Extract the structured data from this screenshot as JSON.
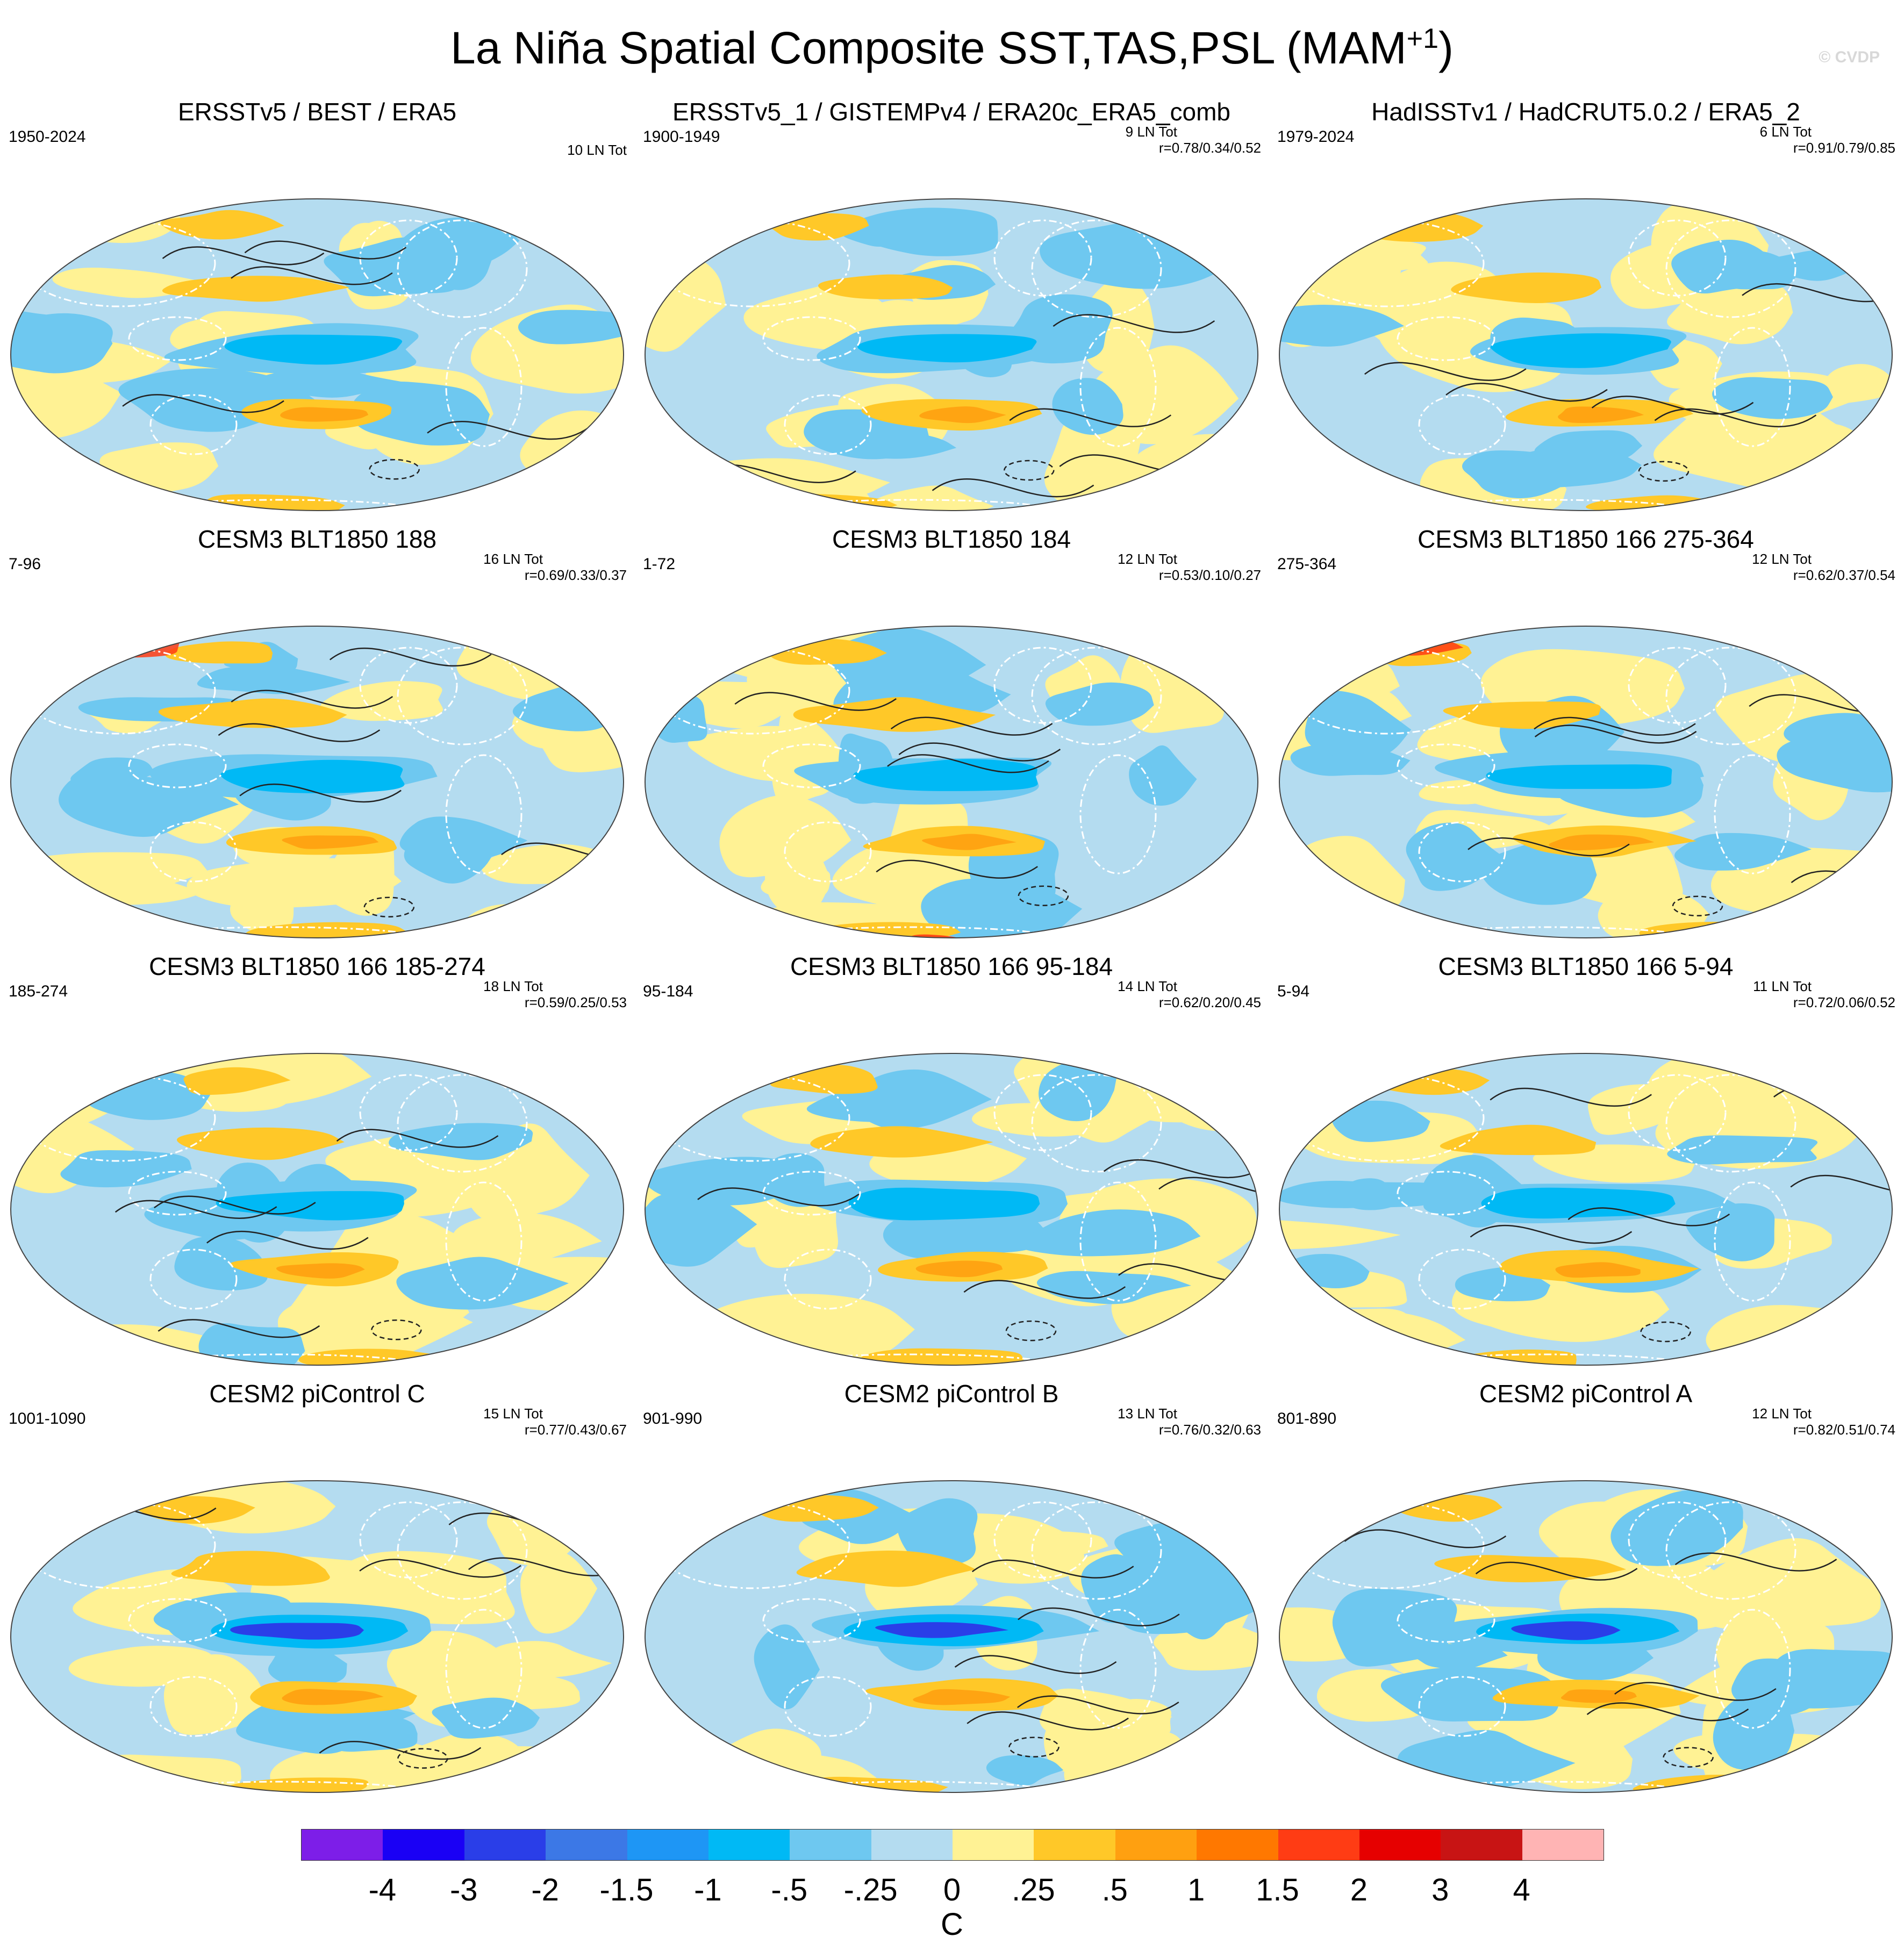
{
  "figure": {
    "title": "La Niña Spatial Composite SST,TAS,PSL (MAM",
    "title_sup": "+1",
    "title_close": ")",
    "watermark": "© CVDP"
  },
  "panels": [
    {
      "title": "ERSSTv5 / BEST / ERA5",
      "years": "1950-2024",
      "ln_count": "10 LN Tot",
      "stats": "",
      "variant": 1
    },
    {
      "title": "ERSSTv5_1 / GISTEMPv4 / ERA20c_ERA5_comb",
      "years": "1900-1949",
      "ln_count": "9 LN Tot",
      "stats": "r=0.78/0.34/0.52",
      "variant": 2
    },
    {
      "title": "HadISSTv1 / HadCRUT5.0.2 / ERA5_2",
      "years": "1979-2024",
      "ln_count": "6 LN Tot",
      "stats": "r=0.91/0.79/0.85",
      "variant": 3
    },
    {
      "title": "CESM3 BLT1850 188",
      "years": "7-96",
      "ln_count": "16 LN Tot",
      "stats": "r=0.69/0.33/0.37",
      "variant": 4
    },
    {
      "title": "CESM3 BLT1850 184",
      "years": "1-72",
      "ln_count": "12 LN Tot",
      "stats": "r=0.53/0.10/0.27",
      "variant": 5
    },
    {
      "title": "CESM3 BLT1850 166 275-364",
      "years": "275-364",
      "ln_count": "12 LN Tot",
      "stats": "r=0.62/0.37/0.54",
      "variant": 6
    },
    {
      "title": "CESM3 BLT1850 166 185-274",
      "years": "185-274",
      "ln_count": "18 LN Tot",
      "stats": "r=0.59/0.25/0.53",
      "variant": 7
    },
    {
      "title": "CESM3 BLT1850 166 95-184",
      "years": "95-184",
      "ln_count": "14 LN Tot",
      "stats": "r=0.62/0.20/0.45",
      "variant": 8
    },
    {
      "title": "CESM3 BLT1850 166 5-94",
      "years": "5-94",
      "ln_count": "11 LN Tot",
      "stats": "r=0.72/0.06/0.52",
      "variant": 9
    },
    {
      "title": "CESM2 piControl C",
      "years": "1001-1090",
      "ln_count": "15 LN Tot",
      "stats": "r=0.77/0.43/0.67",
      "variant": 10
    },
    {
      "title": "CESM2 piControl B",
      "years": "901-990",
      "ln_count": "13 LN Tot",
      "stats": "r=0.76/0.32/0.63",
      "variant": 11
    },
    {
      "title": "CESM2 piControl A",
      "years": "801-890",
      "ln_count": "12 LN Tot",
      "stats": "r=0.82/0.51/0.74",
      "variant": 12
    }
  ],
  "colorbar": {
    "colors": [
      "#7d1ee8",
      "#1a00f5",
      "#2a3ee8",
      "#3c78e6",
      "#1e96f5",
      "#00b9f5",
      "#6ec8f0",
      "#b4dcf0",
      "#fff294",
      "#ffc828",
      "#ffa010",
      "#ff7800",
      "#ff3c14",
      "#e60000",
      "#c81414",
      "#ffb4b4"
    ],
    "ticks": [
      "-4",
      "-3",
      "-2",
      "-1.5",
      "-1",
      "-.5",
      "-.25",
      "0",
      ".25",
      ".5",
      "1",
      "1.5",
      "2",
      "3",
      "4"
    ],
    "unit": "C"
  },
  "palette": {
    "cool": "#b4dcf0",
    "mid_cool": "#6ec8f0",
    "blue": "#00b9f5",
    "deep_blue": "#2a3ee8",
    "warm": "#fff294",
    "orange_light": "#ffc828",
    "orange": "#ffa010",
    "red": "#ff3c14",
    "coast": "#ffffff",
    "contour": "#222222"
  }
}
